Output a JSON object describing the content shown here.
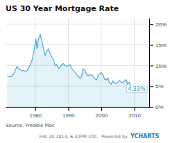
{
  "chart_data": {
    "type": "line",
    "title": "US 30 Year Mortgage Rate",
    "source": "Source: Freddie Mac",
    "footer": "Feb 20 2014, 6:32PM UTC.  Powered by ",
    "credit": "YCHARTS",
    "color": "#4da6d8",
    "grid": true,
    "x": [
      1971.5,
      1972,
      1972.5,
      1973,
      1973.5,
      1974,
      1974.5,
      1975,
      1975.5,
      1976,
      1976.5,
      1977,
      1977.5,
      1978,
      1978.5,
      1979,
      1979.5,
      1980,
      1980.2,
      1980.5,
      1981,
      1981.5,
      1982,
      1982.5,
      1983,
      1983.5,
      1984,
      1984.5,
      1985,
      1985.5,
      1986,
      1986.5,
      1987,
      1987.5,
      1988,
      1988.5,
      1989,
      1989.5,
      1990,
      1990.5,
      1991,
      1991.5,
      1992,
      1992.5,
      1993,
      1993.5,
      1994,
      1994.5,
      1995,
      1995.5,
      1996,
      1996.5,
      1997,
      1997.5,
      1998,
      1998.5,
      1999,
      1999.5,
      2000,
      2000.5,
      2001,
      2001.5,
      2002,
      2002.5,
      2003,
      2003.5,
      2004,
      2004.5,
      2005,
      2005.5,
      2006,
      2006.5,
      2007,
      2007.5,
      2008,
      2008.5,
      2009,
      2009.5,
      2010,
      2010.5,
      2011,
      2011.5,
      2012,
      2012.5,
      2013,
      2013.5,
      2014
    ],
    "values": [
      7.5,
      7.4,
      7.3,
      7.6,
      8.0,
      9.0,
      9.8,
      9.2,
      9.0,
      8.7,
      8.8,
      8.6,
      8.8,
      9.5,
      10.2,
      11.2,
      13.0,
      15.5,
      16.5,
      14.0,
      16.5,
      17.5,
      16.0,
      14.0,
      12.5,
      13.5,
      14.0,
      13.0,
      12.0,
      11.5,
      10.0,
      10.3,
      9.3,
      9.6,
      10.2,
      10.5,
      10.0,
      9.8,
      10.0,
      10.2,
      9.4,
      8.9,
      8.4,
      7.8,
      7.5,
      7.0,
      7.3,
      9.2,
      8.8,
      8.0,
      7.5,
      7.8,
      7.7,
      7.5,
      6.9,
      6.5,
      7.5,
      8.0,
      8.3,
      7.8,
      6.7,
      6.5,
      7.0,
      5.8,
      5.5,
      6.3,
      5.7,
      5.7,
      5.9,
      6.4,
      6.0,
      5.9,
      6.2,
      6.6,
      5.5,
      6.0,
      5.2,
      5.0,
      5.0,
      4.9,
      5.0,
      4.5,
      3.6,
      3.5,
      4.5,
      4.3,
      4.33
    ],
    "xlim": [
      1971,
      2014.5
    ],
    "xticks": [
      1980,
      1990,
      2000,
      2010
    ],
    "ylim": [
      0,
      21.5
    ],
    "yticks": [
      {
        "value": 0,
        "label": "0%"
      },
      {
        "value": 5,
        "label": "5%"
      },
      {
        "value": 10,
        "label": "10%"
      },
      {
        "value": 15,
        "label": "15%"
      },
      {
        "value": 20,
        "label": "20%"
      }
    ],
    "annotations": [
      {
        "text": "4.33%",
        "x": 2014.2,
        "y": 4.33
      }
    ]
  }
}
